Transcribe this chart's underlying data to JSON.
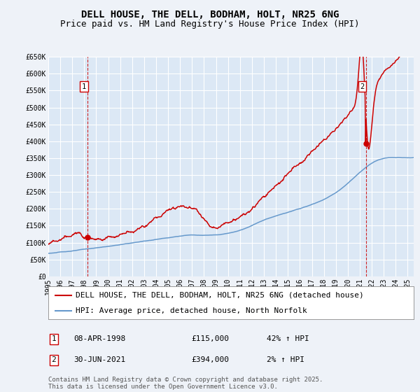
{
  "title": "DELL HOUSE, THE DELL, BODHAM, HOLT, NR25 6NG",
  "subtitle": "Price paid vs. HM Land Registry's House Price Index (HPI)",
  "background_color": "#eef2f8",
  "plot_bg_color": "#dce8f5",
  "grid_color": "#ffffff",
  "ylim": [
    0,
    650000
  ],
  "xlim_start": 1995.0,
  "xlim_end": 2025.5,
  "yticks": [
    0,
    50000,
    100000,
    150000,
    200000,
    250000,
    300000,
    350000,
    400000,
    450000,
    500000,
    550000,
    600000,
    650000
  ],
  "ytick_labels": [
    "£0",
    "£50K",
    "£100K",
    "£150K",
    "£200K",
    "£250K",
    "£300K",
    "£350K",
    "£400K",
    "£450K",
    "£500K",
    "£550K",
    "£600K",
    "£650K"
  ],
  "xticks": [
    1995,
    1996,
    1997,
    1998,
    1999,
    2000,
    2001,
    2002,
    2003,
    2004,
    2005,
    2006,
    2007,
    2008,
    2009,
    2010,
    2011,
    2012,
    2013,
    2014,
    2015,
    2016,
    2017,
    2018,
    2019,
    2020,
    2021,
    2022,
    2023,
    2024,
    2025
  ],
  "red_line_color": "#cc0000",
  "blue_line_color": "#6699cc",
  "sale1_x": 1998.27,
  "sale1_y": 115000,
  "sale2_x": 2021.5,
  "sale2_y": 394000,
  "vline1_x": 1998.27,
  "vline2_x": 2021.5,
  "vline_color": "#cc0000",
  "legend_label_red": "DELL HOUSE, THE DELL, BODHAM, HOLT, NR25 6NG (detached house)",
  "legend_label_blue": "HPI: Average price, detached house, North Norfolk",
  "table_row1": [
    "1",
    "08-APR-1998",
    "£115,000",
    "42% ↑ HPI"
  ],
  "table_row2": [
    "2",
    "30-JUN-2021",
    "£394,000",
    "2% ↑ HPI"
  ],
  "footer": "Contains HM Land Registry data © Crown copyright and database right 2025.\nThis data is licensed under the Open Government Licence v3.0.",
  "title_fontsize": 10,
  "subtitle_fontsize": 9,
  "tick_fontsize": 7,
  "legend_fontsize": 8,
  "table_fontsize": 8,
  "footer_fontsize": 6.5
}
